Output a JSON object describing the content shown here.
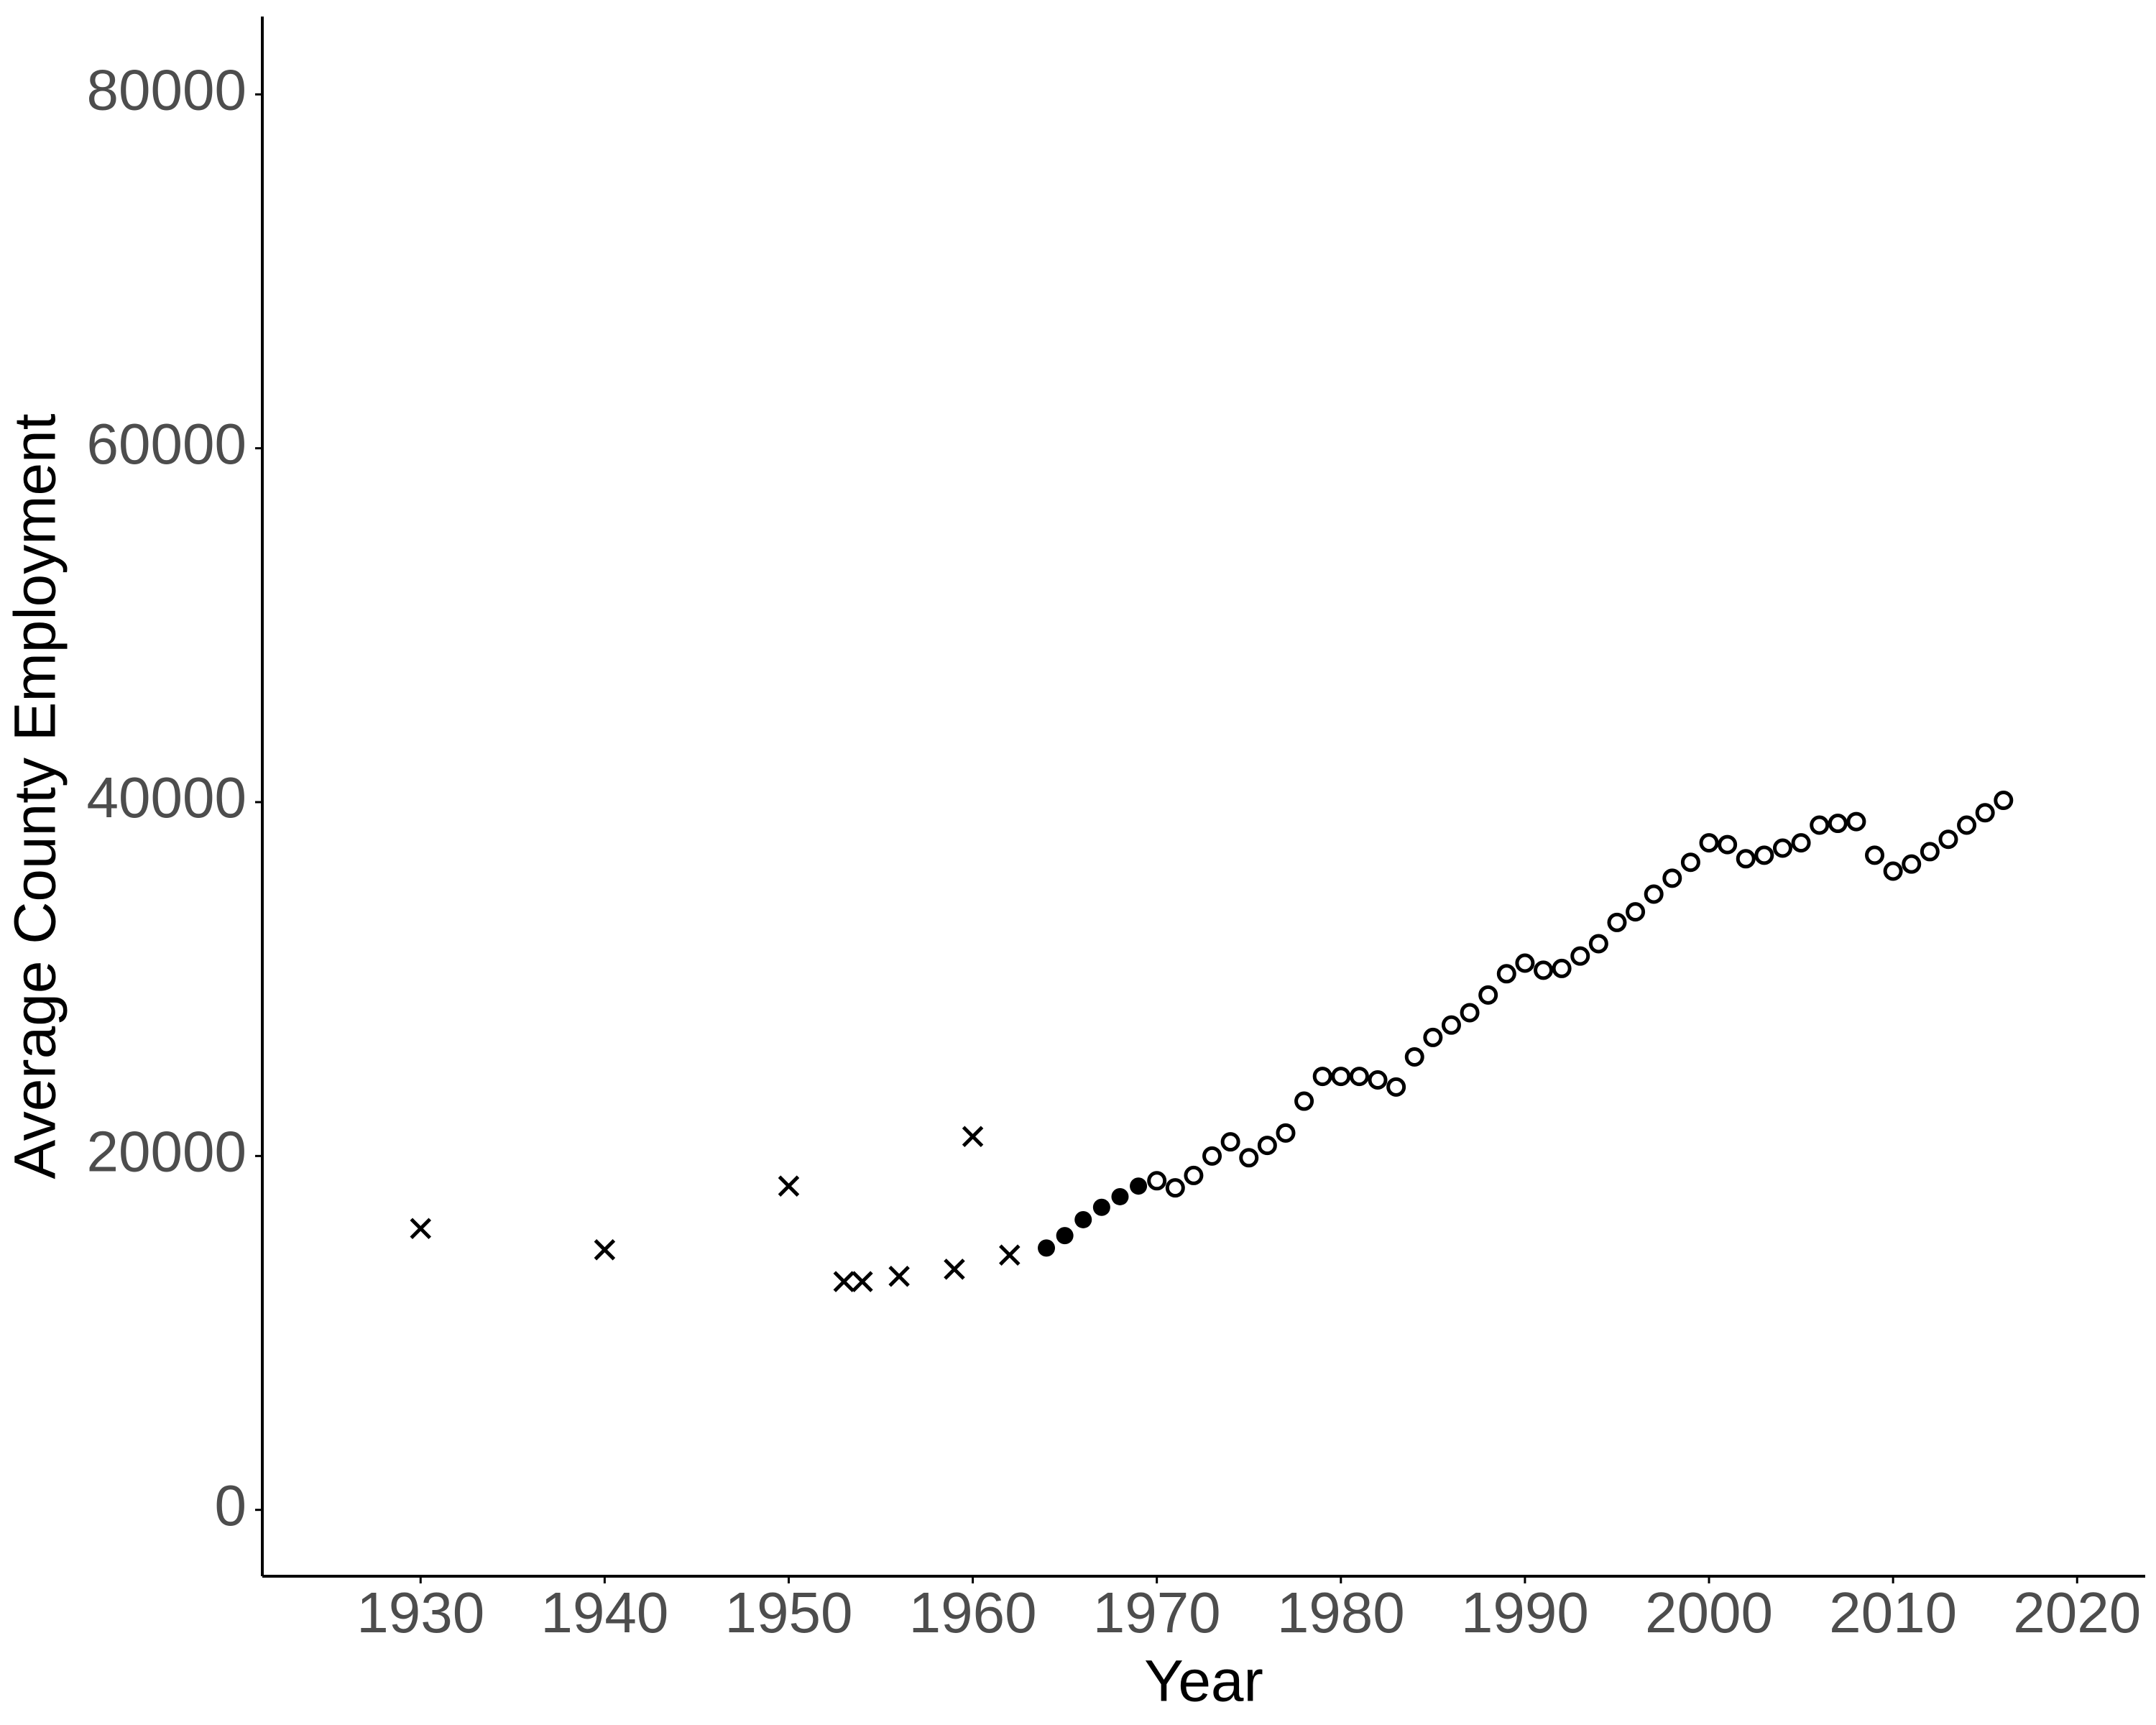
{
  "chart_data": {
    "type": "scatter",
    "x_label": "Year",
    "y_label": "Average County Employment",
    "xlim": [
      1921.4,
      2023.7
    ],
    "ylim": [
      -3750,
      84400
    ],
    "xticks": [
      1930,
      1940,
      1950,
      1960,
      1970,
      1980,
      1990,
      2000,
      2010,
      2020
    ],
    "yticks": [
      0,
      20000,
      40000,
      60000,
      80000
    ],
    "grid": false,
    "series": [
      {
        "marker": "cross",
        "color": "#000000",
        "x": [
          1930,
          1940,
          1950,
          1953,
          1954,
          1956,
          1959,
          1960,
          1962
        ],
        "values": [
          15900,
          14700,
          18300,
          12900,
          12900,
          13200,
          13600,
          21100,
          14400
        ]
      },
      {
        "marker": "filled",
        "color": "#000000",
        "x": [
          1964,
          1965,
          1966,
          1967,
          1968,
          1969
        ],
        "values": [
          14800,
          15500,
          16400,
          17100,
          17700,
          18300
        ]
      },
      {
        "marker": "open",
        "color": "#000000",
        "x": [
          1970,
          1971,
          1972,
          1973,
          1974,
          1975,
          1976,
          1977,
          1978,
          1979,
          1980,
          1981,
          1982,
          1983,
          1984,
          1985,
          1986,
          1987,
          1988,
          1989,
          1990,
          1991,
          1992,
          1993,
          1994,
          1995,
          1996,
          1997,
          1998,
          1999,
          2000,
          2001,
          2002,
          2003,
          2004,
          2005,
          2006,
          2007,
          2008,
          2009,
          2010,
          2011,
          2012,
          2013,
          2014,
          2015,
          2016
        ],
        "values": [
          18600,
          18200,
          18900,
          20000,
          20800,
          19900,
          20600,
          21300,
          23100,
          24500,
          24500,
          24500,
          24300,
          23900,
          25600,
          26700,
          27400,
          28100,
          29100,
          30300,
          30900,
          30500,
          30600,
          31300,
          32000,
          33200,
          33800,
          34800,
          35700,
          36600,
          37700,
          37600,
          36800,
          37000,
          37400,
          37700,
          38700,
          38800,
          38900,
          37000,
          36100,
          36500,
          37200,
          37900,
          38700,
          39400,
          40100
        ]
      }
    ]
  }
}
